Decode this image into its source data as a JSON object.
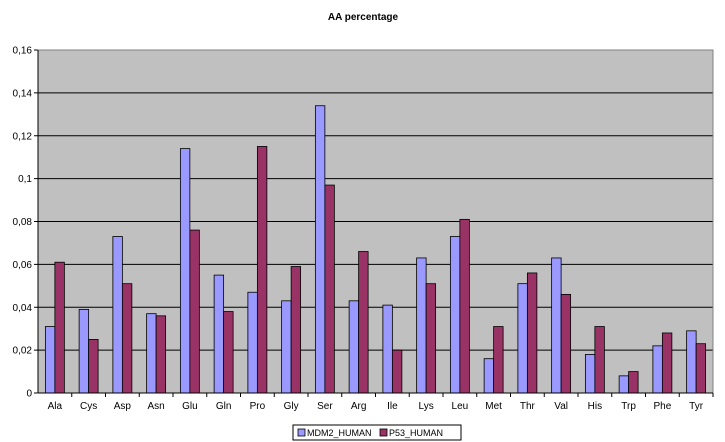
{
  "chart_data": {
    "type": "bar",
    "title": "AA percentage",
    "xlabel": "",
    "ylabel": "",
    "ylim": [
      0,
      0.16
    ],
    "y_ticks": [
      "0",
      "0,02",
      "0,04",
      "0,06",
      "0,08",
      "0,1",
      "0,12",
      "0,14",
      "0,16"
    ],
    "y_tick_values": [
      0,
      0.02,
      0.04,
      0.06,
      0.08,
      0.1,
      0.12,
      0.14,
      0.16
    ],
    "grid": true,
    "legend_position": "bottom",
    "plot_background": "#C0C0C0",
    "categories": [
      "Ala",
      "Cys",
      "Asp",
      "Asn",
      "Glu",
      "Gln",
      "Pro",
      "Gly",
      "Ser",
      "Arg",
      "Ile",
      "Lys",
      "Leu",
      "Met",
      "Thr",
      "Val",
      "His",
      "Trp",
      "Phe",
      "Tyr"
    ],
    "series": [
      {
        "name": "MDM2_HUMAN",
        "color": "#9999FF",
        "values": [
          0.031,
          0.039,
          0.073,
          0.037,
          0.114,
          0.055,
          0.047,
          0.043,
          0.134,
          0.043,
          0.041,
          0.063,
          0.073,
          0.016,
          0.051,
          0.063,
          0.018,
          0.008,
          0.022,
          0.029
        ]
      },
      {
        "name": "P53_HUMAN",
        "color": "#993366",
        "values": [
          0.061,
          0.025,
          0.051,
          0.036,
          0.076,
          0.038,
          0.115,
          0.059,
          0.097,
          0.066,
          0.02,
          0.051,
          0.081,
          0.031,
          0.056,
          0.046,
          0.031,
          0.01,
          0.028,
          0.023
        ]
      }
    ]
  }
}
